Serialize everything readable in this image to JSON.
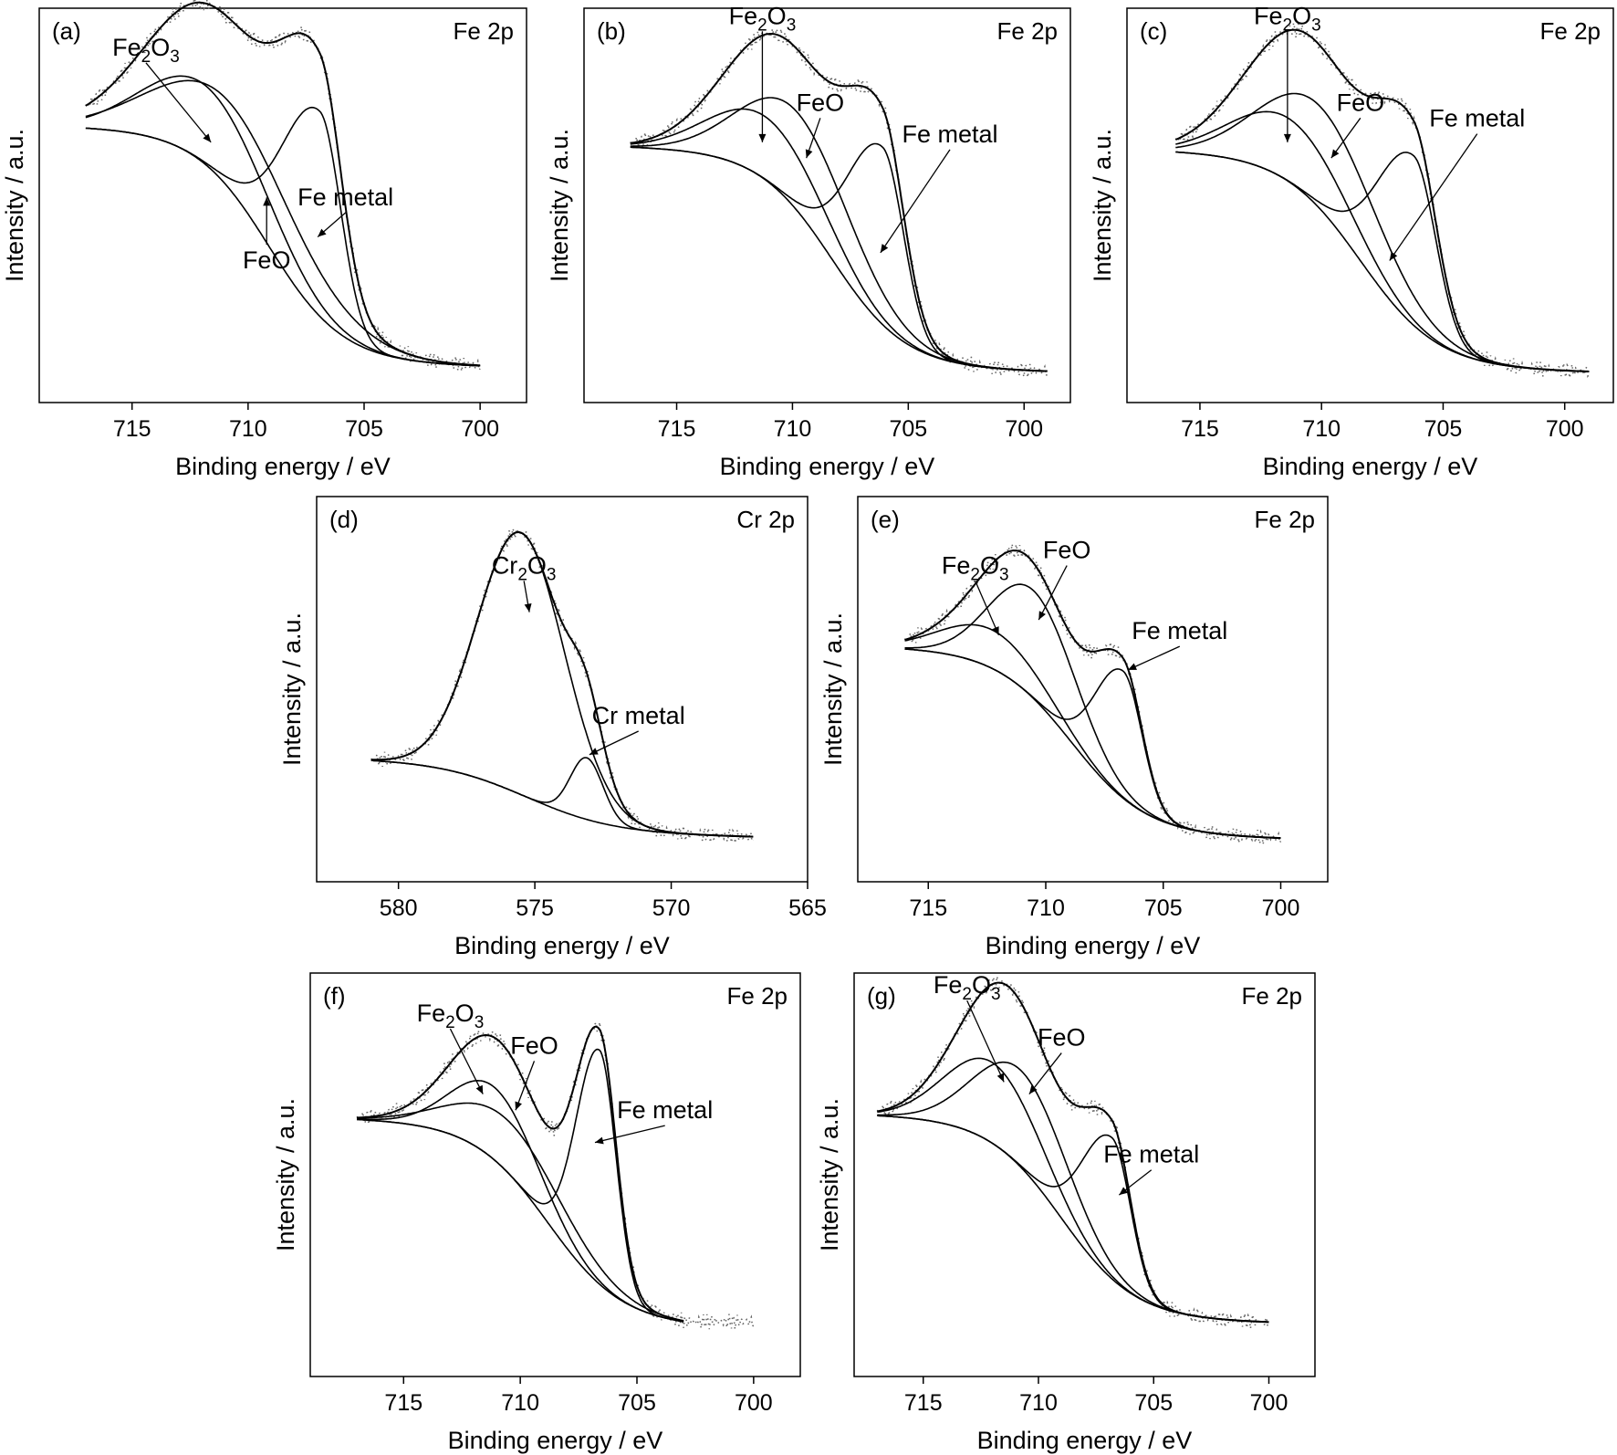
{
  "figure": {
    "colors": {
      "ink": "#000000",
      "raw": "#666666"
    }
  },
  "chart_data": [
    {
      "panel": "(a)",
      "type": "line",
      "spectrum": "Fe 2p",
      "xlabel": "Binding energy / eV",
      "ylabel": "Intensity / a.u.",
      "xlim": [
        719,
        698
      ],
      "ylim": [
        0,
        1
      ],
      "xticks": [
        715,
        710,
        705,
        700
      ],
      "x_range": [
        717,
        700
      ],
      "baseline": [
        0.06,
        0.7
      ],
      "raw_data": {
        "x_range": [
          717,
          700
        ],
        "shown": true
      },
      "series": [
        {
          "name": "Fe2O3",
          "center": 711.8,
          "height": 0.2,
          "width": 2.6
        },
        {
          "name": "FeO",
          "center": 710.6,
          "height": 0.22,
          "width": 3.2
        },
        {
          "name": "Fe metal",
          "center": 706.9,
          "height": 0.52,
          "width": 0.9,
          "tail": 1.6
        }
      ],
      "annotations": [
        {
          "text": "Fe",
          "sub": "2",
          "text2": "O",
          "sub2": "3",
          "tip": [
            711.6,
            0.66
          ]
        },
        {
          "text": "FeO",
          "tip": [
            709.2,
            0.52
          ]
        },
        {
          "text": "Fe metal",
          "tip": [
            707.0,
            0.42
          ]
        }
      ]
    },
    {
      "panel": "(b)",
      "type": "line",
      "spectrum": "Fe 2p",
      "xlabel": "Binding energy / eV",
      "ylabel": "Intensity / a.u.",
      "xlim": [
        719,
        698
      ],
      "ylim": [
        0,
        1
      ],
      "xticks": [
        715,
        710,
        705,
        700
      ],
      "x_range": [
        717,
        699
      ],
      "baseline": [
        0.05,
        0.65
      ],
      "raw_data": {
        "x_range": [
          717,
          699
        ],
        "shown": true
      },
      "series": [
        {
          "name": "Fe2O3",
          "center": 711.1,
          "height": 0.16,
          "width": 2.4
        },
        {
          "name": "FeO",
          "center": 709.7,
          "height": 0.25,
          "width": 2.4
        },
        {
          "name": "Fe metal",
          "center": 706.1,
          "height": 0.45,
          "width": 0.9,
          "tail": 1.5
        }
      ],
      "annotations": [
        {
          "text": "Fe",
          "sub": "2",
          "text2": "O",
          "sub2": "3",
          "tip": [
            711.3,
            0.66
          ]
        },
        {
          "text": "FeO",
          "tip": [
            709.4,
            0.62
          ]
        },
        {
          "text": "Fe metal",
          "tip": [
            706.2,
            0.38
          ]
        }
      ]
    },
    {
      "panel": "(c)",
      "type": "line",
      "spectrum": "Fe 2p",
      "xlabel": "Binding energy / eV",
      "ylabel": "Intensity / a.u.",
      "xlim": [
        718,
        698
      ],
      "ylim": [
        0,
        1
      ],
      "xticks": [
        715,
        710,
        705,
        700
      ],
      "x_range": [
        716,
        699
      ],
      "baseline": [
        0.05,
        0.64
      ],
      "raw_data": {
        "x_range": [
          716,
          699
        ],
        "shown": true
      },
      "series": [
        {
          "name": "Fe2O3",
          "center": 711.3,
          "height": 0.16,
          "width": 2.3
        },
        {
          "name": "FeO",
          "center": 710.0,
          "height": 0.26,
          "width": 2.4
        },
        {
          "name": "Fe metal",
          "center": 706.2,
          "height": 0.43,
          "width": 0.9,
          "tail": 1.5
        }
      ],
      "annotations": [
        {
          "text": "Fe",
          "sub": "2",
          "text2": "O",
          "sub2": "3",
          "tip": [
            711.4,
            0.66
          ]
        },
        {
          "text": "FeO",
          "tip": [
            709.6,
            0.62
          ]
        },
        {
          "text": "Fe metal",
          "tip": [
            707.2,
            0.36
          ]
        }
      ]
    },
    {
      "panel": "(d)",
      "type": "line",
      "spectrum": "Cr 2p",
      "xlabel": "Binding energy / eV",
      "ylabel": "Intensity / a.u.",
      "xlim": [
        583,
        565
      ],
      "ylim": [
        0,
        1
      ],
      "xticks": [
        580,
        575,
        570,
        565
      ],
      "x_range": [
        581,
        567
      ],
      "baseline": [
        0.12,
        0.32
      ],
      "raw_data": {
        "x_range": [
          581,
          567
        ],
        "shown": true
      },
      "series": [
        {
          "name": "Cr2O3",
          "center": 575.5,
          "height": 0.68,
          "width": 1.6
        },
        {
          "name": "Cr metal",
          "center": 573.1,
          "height": 0.16,
          "width": 0.6
        }
      ],
      "annotations": [
        {
          "text": "Cr",
          "sub": "2",
          "text2": "O",
          "sub2": "3",
          "tip": [
            575.2,
            0.7
          ]
        },
        {
          "text": "Cr metal",
          "tip": [
            573.0,
            0.33
          ]
        }
      ]
    },
    {
      "panel": "(e)",
      "type": "line",
      "spectrum": "Fe 2p",
      "xlabel": "Binding energy / eV",
      "ylabel": "Intensity / a.u.",
      "xlim": [
        718,
        698
      ],
      "ylim": [
        0,
        1
      ],
      "xticks": [
        715,
        710,
        705,
        700
      ],
      "x_range": [
        716,
        700
      ],
      "baseline": [
        0.09,
        0.61
      ],
      "raw_data": {
        "x_range": [
          716,
          700
        ],
        "shown": true
      },
      "series": [
        {
          "name": "Fe2O3",
          "center": 712.3,
          "height": 0.1,
          "width": 2.1
        },
        {
          "name": "FeO",
          "center": 710.5,
          "height": 0.28,
          "width": 1.8
        },
        {
          "name": "Fe metal",
          "center": 706.7,
          "height": 0.33,
          "width": 0.8,
          "tail": 1.2
        }
      ],
      "annotations": [
        {
          "text": "Fe",
          "sub": "2",
          "text2": "O",
          "sub2": "3",
          "tip": [
            712.0,
            0.64
          ]
        },
        {
          "text": "FeO",
          "tip": [
            710.3,
            0.68
          ]
        },
        {
          "text": "Fe metal",
          "tip": [
            706.5,
            0.55
          ]
        }
      ]
    },
    {
      "panel": "(f)",
      "type": "line",
      "spectrum": "Fe 2p",
      "xlabel": "Binding energy / eV",
      "ylabel": "Intensity / a.u.",
      "xlim": [
        719,
        698
      ],
      "ylim": [
        0,
        1
      ],
      "xticks": [
        715,
        710,
        705,
        700
      ],
      "x_range": [
        717,
        703
      ],
      "baseline": [
        0.1,
        0.64
      ],
      "raw_data": {
        "x_range": [
          717,
          700
        ],
        "shown": true
      },
      "series": [
        {
          "name": "Fe2O3",
          "center": 711.1,
          "height": 0.18,
          "width": 1.8
        },
        {
          "name": "FeO",
          "center": 710.3,
          "height": 0.13,
          "width": 2.5
        },
        {
          "name": "Fe metal",
          "center": 706.6,
          "height": 0.58,
          "width": 0.7,
          "tail": 1.0
        }
      ],
      "annotations": [
        {
          "text": "Fe",
          "sub": "2",
          "text2": "O",
          "sub2": "3",
          "tip": [
            711.6,
            0.7
          ]
        },
        {
          "text": "FeO",
          "tip": [
            710.2,
            0.66
          ]
        },
        {
          "text": "Fe metal",
          "tip": [
            706.8,
            0.58
          ]
        }
      ]
    },
    {
      "panel": "(g)",
      "type": "line",
      "spectrum": "Fe 2p",
      "xlabel": "Binding energy / eV",
      "ylabel": "Intensity / a.u.",
      "xlim": [
        718,
        698
      ],
      "ylim": [
        0,
        1
      ],
      "xticks": [
        715,
        710,
        705,
        700
      ],
      "x_range": [
        717,
        700
      ],
      "baseline": [
        0.11,
        0.65
      ],
      "raw_data": {
        "x_range": [
          717,
          700
        ],
        "shown": true
      },
      "series": [
        {
          "name": "Fe2O3",
          "center": 712.0,
          "height": 0.2,
          "width": 2.0
        },
        {
          "name": "FeO",
          "center": 710.7,
          "height": 0.24,
          "width": 2.0
        },
        {
          "name": "Fe metal",
          "center": 706.8,
          "height": 0.35,
          "width": 0.8,
          "tail": 1.3
        }
      ],
      "annotations": [
        {
          "text": "Fe",
          "sub": "2",
          "text2": "O",
          "sub2": "3",
          "tip": [
            711.5,
            0.73
          ]
        },
        {
          "text": "FeO",
          "tip": [
            710.4,
            0.7
          ]
        },
        {
          "text": "Fe metal",
          "tip": [
            706.5,
            0.45
          ]
        }
      ]
    }
  ]
}
